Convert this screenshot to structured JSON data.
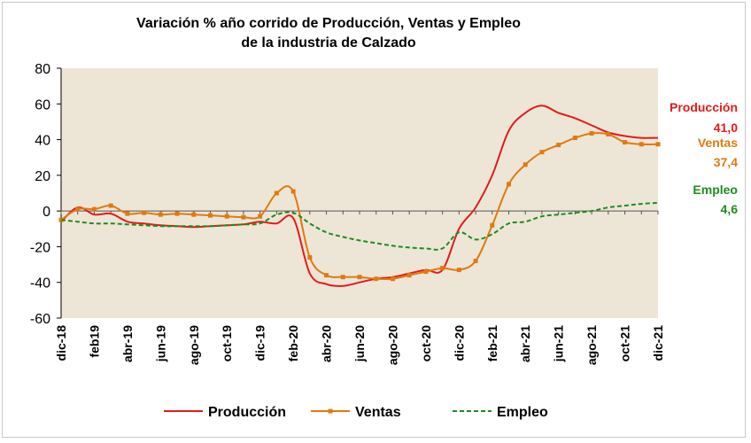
{
  "chart_data": {
    "type": "line",
    "title_lines": [
      "Variación % año corrido de Producción, Ventas y Empleo",
      "de la industria de Calzado"
    ],
    "plot_background": "#ede6d6",
    "ylim": [
      -60,
      80
    ],
    "yticks": [
      80,
      60,
      40,
      20,
      0,
      -20,
      -40,
      -60
    ],
    "categories": [
      "dic-18",
      "ene-19",
      "feb19",
      "mar-19",
      "abr-19",
      "may-19",
      "jun-19",
      "jul-19",
      "ago-19",
      "sep-19",
      "oct-19",
      "nov-19",
      "dic-19",
      "ene-20",
      "feb-20",
      "mar-20",
      "abr-20",
      "may-20",
      "jun-20",
      "jul-20",
      "ago-20",
      "sep-20",
      "oct-20",
      "nov-20",
      "dic-20",
      "ene-21",
      "feb-21",
      "mar-21",
      "abr-21",
      "may-21",
      "jun-21",
      "jul-21",
      "ago-21",
      "sep-21",
      "oct-21",
      "nov-21",
      "dic-21"
    ],
    "xtick_labels": [
      "dic-18",
      "feb19",
      "abr-19",
      "jun-19",
      "ago-19",
      "oct-19",
      "dic-19",
      "feb-20",
      "abr-20",
      "jun-20",
      "ago-20",
      "oct-20",
      "dic-20",
      "feb-21",
      "abr-21",
      "jun-21",
      "ago-21",
      "oct-21",
      "dic-21"
    ],
    "series": [
      {
        "name": "Producción",
        "color": "#e31b1b",
        "style": "solid",
        "end_value_label": "41,0",
        "values": [
          -6,
          2,
          -2,
          -1.5,
          -6,
          -7,
          -8,
          -8.5,
          -9,
          -8.5,
          -8,
          -7.5,
          -6,
          -7,
          -4,
          -35,
          -41,
          -42,
          -40,
          -38,
          -37,
          -35,
          -33,
          -33,
          -10,
          2,
          20,
          45,
          55,
          59,
          55,
          52,
          48,
          44,
          42,
          41,
          41
        ]
      },
      {
        "name": "Ventas",
        "color": "#e07a10",
        "style": "solid-markers",
        "end_value_label": "37,4",
        "values": [
          -5,
          1,
          1,
          3,
          -1.5,
          -1,
          -2,
          -1.5,
          -2,
          -2.5,
          -3,
          -3.5,
          -3,
          10,
          11,
          -26,
          -36,
          -37,
          -37,
          -38,
          -38,
          -36,
          -34,
          -32,
          -33,
          -28,
          -8,
          15,
          26,
          33,
          37,
          41,
          43.5,
          43,
          38.5,
          37.4,
          37.4
        ]
      },
      {
        "name": "Empleo",
        "color": "#1e8c1e",
        "style": "dashed",
        "end_value_label": "4,6",
        "values": [
          -5,
          -6,
          -7,
          -7,
          -7.5,
          -8,
          -8.5,
          -8.5,
          -8.5,
          -8.5,
          -8,
          -7.5,
          -7,
          -2,
          -1,
          -7,
          -12,
          -14.5,
          -16.5,
          -18,
          -19.5,
          -20.5,
          -21,
          -21,
          -12,
          -16,
          -13,
          -7,
          -6,
          -3,
          -2,
          -1,
          0,
          2,
          3,
          4,
          4.6
        ]
      }
    ],
    "legend_position": "bottom",
    "grid": false
  }
}
